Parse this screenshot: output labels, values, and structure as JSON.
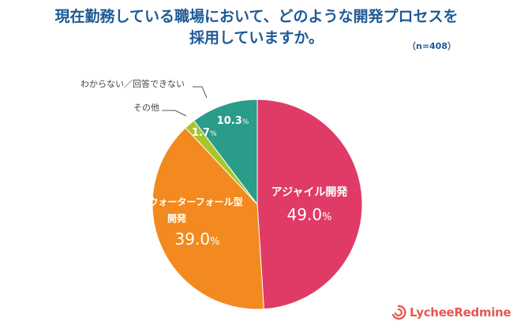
{
  "title": {
    "line1": "現在勤務している職場において、どのような開発プロセスを",
    "line2": "採用していますか。",
    "sample_size": "（n=408）"
  },
  "colors": {
    "title": "#1e5a96",
    "agile": "#e03b66",
    "waterfall": "#f28a1f",
    "other": "#a6c629",
    "unknown": "#2b9b8a",
    "logo": "#e8574f"
  },
  "chart_data": {
    "type": "pie",
    "unit": "%",
    "slices": [
      {
        "label": "アジャイル開発",
        "value_text": "49.0",
        "value": 49.0,
        "color": "#e03b66"
      },
      {
        "label": "ウォーターフォール型開発",
        "value_text": "39.0",
        "value": 39.0,
        "color": "#f28a1f"
      },
      {
        "label": "その他",
        "value_text": "1.7",
        "value": 1.7,
        "color": "#a6c629"
      },
      {
        "label": "わからない／回答できない",
        "value_text": "10.3",
        "value": 10.3,
        "color": "#2b9b8a"
      }
    ]
  },
  "logo": {
    "text": "LycheeRedmine",
    "icon": "lychee-swirl-icon"
  }
}
